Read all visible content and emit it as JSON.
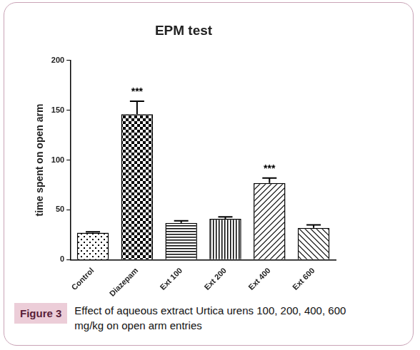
{
  "chart_data": {
    "type": "bar",
    "title": "EPM test",
    "y_label": "time spent on open arm",
    "categories": [
      "Control",
      "Diazepam",
      "Ext 100",
      "Ext 200",
      "Ext 400",
      "Ext 600"
    ],
    "values": [
      27,
      146,
      37,
      41,
      77,
      32
    ],
    "errors": [
      1,
      13,
      2,
      2,
      5,
      3
    ],
    "color": "#000000",
    "ylim": [
      0,
      200
    ],
    "yticks": [
      0,
      50,
      100,
      150,
      200
    ],
    "grid": false,
    "annotations": [
      {
        "category": "Diazepam",
        "text": "***"
      },
      {
        "category": "Ext 400",
        "text": "***"
      }
    ],
    "caption": {
      "label": "Figure 3",
      "text": "Effect of aqueous extract Urtica urens 100, 200, 400, 600 mg/kg on open arm entries"
    }
  }
}
